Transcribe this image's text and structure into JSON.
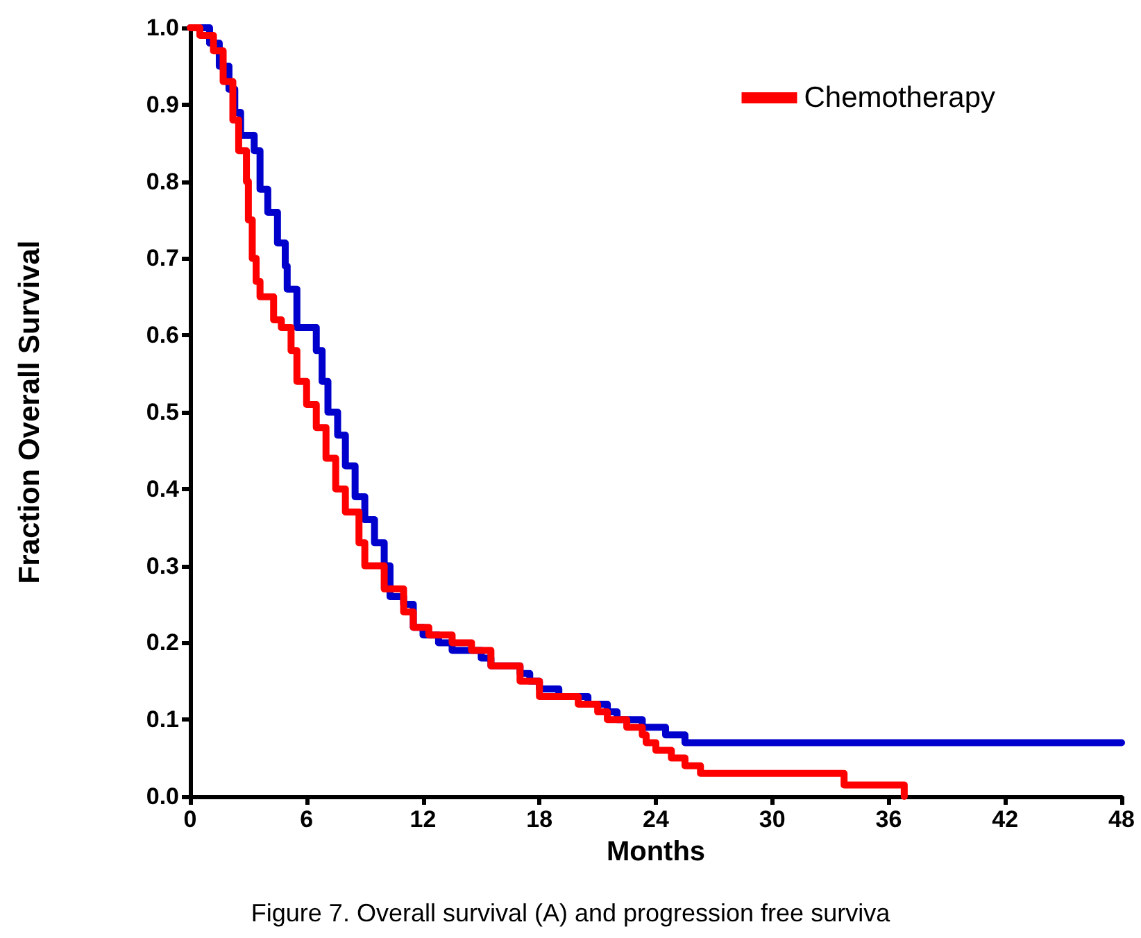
{
  "chart_data": {
    "type": "step",
    "xlabel": "Months",
    "ylabel": "Fraction Overall Survival",
    "xlim": [
      0,
      48
    ],
    "xticks": [
      0,
      6,
      12,
      18,
      24,
      30,
      36,
      42,
      48
    ],
    "ylim": [
      0,
      1
    ],
    "yticks": [
      {
        "value": 0,
        "label": "0.0"
      },
      0.1,
      0.2,
      0.3,
      0.4,
      0.5,
      0.6,
      0.7,
      0.8,
      0.9,
      {
        "value": 1,
        "label": "1.0"
      }
    ],
    "grid": false,
    "legend": "top right",
    "marker": "none",
    "line_style": "solid",
    "annotations": [
      "Figure 7. Overall survival (A) and progression free surviva"
    ],
    "series": [
      {
        "color": "#0000cc",
        "x": [
          0,
          1,
          1.5,
          2,
          2.3,
          2.6,
          3.3,
          3.6,
          4,
          4.5,
          4.9,
          5,
          5.5,
          6.5,
          6.8,
          7.1,
          7.6,
          8,
          8.5,
          9,
          9.5,
          10,
          10.3,
          11,
          11.5,
          12,
          12.8,
          13.5,
          15,
          15.5,
          17,
          17.5,
          18,
          19,
          20.5,
          21.5,
          22,
          23.3,
          24.5,
          25.5,
          48
        ],
        "values": [
          1,
          0.98,
          0.95,
          0.92,
          0.89,
          0.86,
          0.84,
          0.79,
          0.76,
          0.72,
          0.69,
          0.66,
          0.61,
          0.58,
          0.54,
          0.5,
          0.47,
          0.43,
          0.39,
          0.36,
          0.33,
          0.3,
          0.26,
          0.25,
          0.22,
          0.21,
          0.2,
          0.19,
          0.18,
          0.17,
          0.16,
          0.15,
          0.14,
          0.13,
          0.12,
          0.11,
          0.1,
          0.09,
          0.08,
          0.07,
          0.07
        ]
      },
      {
        "name": "Chemotherapy",
        "color": "#ff0000",
        "x": [
          0,
          0.5,
          1.2,
          1.7,
          2.2,
          2.5,
          2.9,
          3,
          3.2,
          3.4,
          3.6,
          4.3,
          4.7,
          5.2,
          5.5,
          6,
          6.5,
          7,
          7.5,
          8,
          8.7,
          9,
          10,
          11,
          11.5,
          12.3,
          13.5,
          14.5,
          15.5,
          17,
          18,
          20,
          21,
          21.5,
          22.5,
          23.3,
          23.5,
          24,
          24.8,
          25.5,
          26.3,
          33.7,
          36.8
        ],
        "values": [
          1,
          0.99,
          0.97,
          0.93,
          0.88,
          0.84,
          0.8,
          0.75,
          0.7,
          0.67,
          0.65,
          0.62,
          0.61,
          0.58,
          0.54,
          0.51,
          0.48,
          0.44,
          0.4,
          0.37,
          0.33,
          0.3,
          0.27,
          0.24,
          0.22,
          0.21,
          0.2,
          0.19,
          0.17,
          0.15,
          0.13,
          0.12,
          0.11,
          0.1,
          0.09,
          0.08,
          0.07,
          0.06,
          0.05,
          0.04,
          0.03,
          0.015,
          0
        ]
      }
    ]
  }
}
